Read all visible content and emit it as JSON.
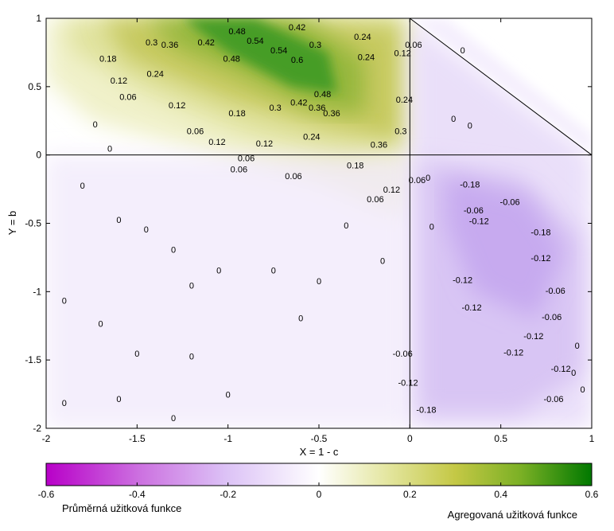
{
  "chart_data": {
    "type": "heatmap",
    "xlabel": "X = 1 - c",
    "ylabel": "Y = b",
    "xlim": [
      -2,
      1
    ],
    "ylim": [
      -2,
      1
    ],
    "x_ticks": [
      "-2",
      "-1.5",
      "-1",
      "-0.5",
      "0",
      "0.5",
      "1"
    ],
    "y_ticks": [
      "1",
      "0.5",
      "0",
      "-0.5",
      "-1",
      "-1.5",
      "-2"
    ],
    "colorbar": {
      "range": [
        -0.6,
        0.6
      ],
      "ticks": [
        "-0.6",
        "-0.4",
        "-0.2",
        "0",
        "0.2",
        "0.4",
        "0.6"
      ],
      "negative_label": "Průměrná užitková funkce",
      "positive_label": "Agregovaná užitková funkce",
      "negative_color": "#b800c8",
      "positive_color": "#007800"
    },
    "contour_labels": [
      {
        "x": -1.42,
        "y": 0.82,
        "text": "0.3"
      },
      {
        "x": -1.32,
        "y": 0.8,
        "text": "0.36"
      },
      {
        "x": -1.12,
        "y": 0.82,
        "text": "0.42"
      },
      {
        "x": -0.95,
        "y": 0.9,
        "text": "0.48"
      },
      {
        "x": -0.85,
        "y": 0.83,
        "text": "0.54"
      },
      {
        "x": -0.62,
        "y": 0.93,
        "text": "0.42"
      },
      {
        "x": -0.72,
        "y": 0.76,
        "text": "0.54"
      },
      {
        "x": -0.62,
        "y": 0.69,
        "text": "0.6"
      },
      {
        "x": -0.98,
        "y": 0.7,
        "text": "0.48"
      },
      {
        "x": -0.52,
        "y": 0.8,
        "text": "0.3"
      },
      {
        "x": -0.26,
        "y": 0.86,
        "text": "0.24"
      },
      {
        "x": -1.66,
        "y": 0.7,
        "text": "0.18"
      },
      {
        "x": -1.6,
        "y": 0.54,
        "text": "0.12"
      },
      {
        "x": -1.55,
        "y": 0.42,
        "text": "0.06"
      },
      {
        "x": -1.4,
        "y": 0.59,
        "text": "0.24"
      },
      {
        "x": -1.28,
        "y": 0.36,
        "text": "0.12"
      },
      {
        "x": -0.95,
        "y": 0.3,
        "text": "0.18"
      },
      {
        "x": -0.74,
        "y": 0.34,
        "text": "0.3"
      },
      {
        "x": -0.61,
        "y": 0.38,
        "text": "0.42"
      },
      {
        "x": -0.51,
        "y": 0.34,
        "text": "0.36"
      },
      {
        "x": -0.48,
        "y": 0.44,
        "text": "0.48"
      },
      {
        "x": -0.43,
        "y": 0.3,
        "text": "0.36"
      },
      {
        "x": -0.24,
        "y": 0.71,
        "text": "0.24"
      },
      {
        "x": -0.04,
        "y": 0.74,
        "text": "0.12"
      },
      {
        "x": 0.02,
        "y": 0.8,
        "text": "0.06"
      },
      {
        "x": -0.03,
        "y": 0.4,
        "text": "0.24"
      },
      {
        "x": -0.05,
        "y": 0.17,
        "text": "0.3"
      },
      {
        "x": -0.17,
        "y": 0.07,
        "text": "0.36"
      },
      {
        "x": -1.18,
        "y": 0.17,
        "text": "0.06"
      },
      {
        "x": -1.06,
        "y": 0.09,
        "text": "0.12"
      },
      {
        "x": -0.8,
        "y": 0.08,
        "text": "0.12"
      },
      {
        "x": -0.54,
        "y": 0.13,
        "text": "0.24"
      },
      {
        "x": -0.9,
        "y": -0.03,
        "text": "0.06"
      },
      {
        "x": -0.94,
        "y": -0.11,
        "text": "0.06"
      },
      {
        "x": -0.64,
        "y": -0.16,
        "text": "0.06"
      },
      {
        "x": -0.3,
        "y": -0.08,
        "text": "0.18"
      },
      {
        "x": -0.1,
        "y": -0.26,
        "text": "0.12"
      },
      {
        "x": -0.19,
        "y": -0.33,
        "text": "0.06"
      },
      {
        "x": 0.04,
        "y": -0.19,
        "text": "0.06"
      },
      {
        "x": -1.73,
        "y": 0.22,
        "text": "0"
      },
      {
        "x": -1.65,
        "y": 0.04,
        "text": "0"
      },
      {
        "x": -1.8,
        "y": -0.23,
        "text": "0"
      },
      {
        "x": -1.6,
        "y": -0.48,
        "text": "0"
      },
      {
        "x": -1.45,
        "y": -0.55,
        "text": "0"
      },
      {
        "x": -1.3,
        "y": -0.7,
        "text": "0"
      },
      {
        "x": -1.2,
        "y": -0.96,
        "text": "0"
      },
      {
        "x": -1.05,
        "y": -0.85,
        "text": "0"
      },
      {
        "x": -0.75,
        "y": -0.85,
        "text": "0"
      },
      {
        "x": -0.5,
        "y": -0.93,
        "text": "0"
      },
      {
        "x": -0.35,
        "y": -0.52,
        "text": "0"
      },
      {
        "x": -0.15,
        "y": -0.78,
        "text": "0"
      },
      {
        "x": -1.9,
        "y": -1.07,
        "text": "0"
      },
      {
        "x": -1.7,
        "y": -1.24,
        "text": "0"
      },
      {
        "x": -1.5,
        "y": -1.46,
        "text": "0"
      },
      {
        "x": -1.2,
        "y": -1.48,
        "text": "0"
      },
      {
        "x": -0.6,
        "y": -1.2,
        "text": "0"
      },
      {
        "x": -1.6,
        "y": -1.79,
        "text": "0"
      },
      {
        "x": -1.3,
        "y": -1.93,
        "text": "0"
      },
      {
        "x": -1.9,
        "y": -1.82,
        "text": "0"
      },
      {
        "x": -1.0,
        "y": -1.76,
        "text": "0"
      },
      {
        "x": 0.12,
        "y": -0.53,
        "text": "0"
      },
      {
        "x": 0.1,
        "y": -0.17,
        "text": "0"
      },
      {
        "x": 0.24,
        "y": 0.26,
        "text": "0"
      },
      {
        "x": 0.33,
        "y": 0.21,
        "text": "0"
      },
      {
        "x": 0.29,
        "y": 0.76,
        "text": "0"
      },
      {
        "x": 0.33,
        "y": -0.22,
        "text": "-0.18"
      },
      {
        "x": 0.55,
        "y": -0.35,
        "text": "-0.06"
      },
      {
        "x": 0.35,
        "y": -0.41,
        "text": "-0.06"
      },
      {
        "x": 0.38,
        "y": -0.49,
        "text": "-0.12"
      },
      {
        "x": 0.72,
        "y": -0.57,
        "text": "-0.18"
      },
      {
        "x": 0.72,
        "y": -0.76,
        "text": "-0.12"
      },
      {
        "x": 0.29,
        "y": -0.92,
        "text": "-0.12"
      },
      {
        "x": 0.34,
        "y": -1.12,
        "text": "-0.12"
      },
      {
        "x": 0.8,
        "y": -1.0,
        "text": "-0.06"
      },
      {
        "x": 0.78,
        "y": -1.19,
        "text": "-0.06"
      },
      {
        "x": 0.68,
        "y": -1.33,
        "text": "-0.12"
      },
      {
        "x": 0.57,
        "y": -1.45,
        "text": "-0.12"
      },
      {
        "x": 0.83,
        "y": -1.57,
        "text": "-0.12"
      },
      {
        "x": -0.04,
        "y": -1.46,
        "text": "-0.06"
      },
      {
        "x": -0.01,
        "y": -1.67,
        "text": "-0.12"
      },
      {
        "x": 0.09,
        "y": -1.87,
        "text": "-0.18"
      },
      {
        "x": 0.79,
        "y": -1.79,
        "text": "-0.06"
      },
      {
        "x": 0.92,
        "y": -1.4,
        "text": "0"
      },
      {
        "x": 0.9,
        "y": -1.6,
        "text": "0"
      },
      {
        "x": 0.95,
        "y": -1.72,
        "text": "0"
      }
    ]
  }
}
